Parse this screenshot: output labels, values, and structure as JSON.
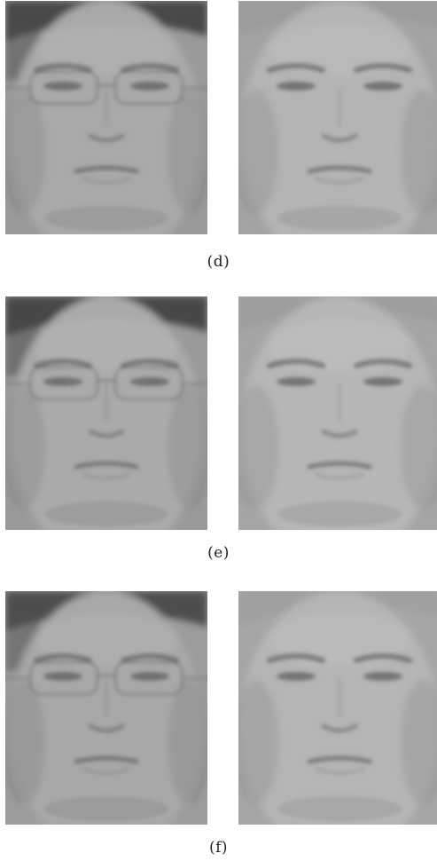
{
  "panels": [
    {
      "caption": "(d)",
      "faces": [
        {
          "subject": "left",
          "background": "#9a9a9a",
          "skin": "#a9a9a9",
          "hair": "#4a4a4a"
        },
        {
          "subject": "right",
          "background": "#a3a3a3",
          "skin": "#b4b4b4",
          "hair": "#9b9b9b"
        }
      ]
    },
    {
      "caption": "(e)",
      "faces": [
        {
          "subject": "left",
          "background": "#9a9a9a",
          "skin": "#aaaaaa",
          "hair": "#474747"
        },
        {
          "subject": "right",
          "background": "#a5a5a5",
          "skin": "#b6b6b6",
          "hair": "#9e9e9e"
        }
      ]
    },
    {
      "caption": "(f)",
      "faces": [
        {
          "subject": "left",
          "background": "#9c9c9c",
          "skin": "#a8a8a8",
          "hair": "#4d4d4d"
        },
        {
          "subject": "right",
          "background": "#a6a6a6",
          "skin": "#b5b5b5",
          "hair": "#a0a0a0"
        }
      ]
    }
  ]
}
